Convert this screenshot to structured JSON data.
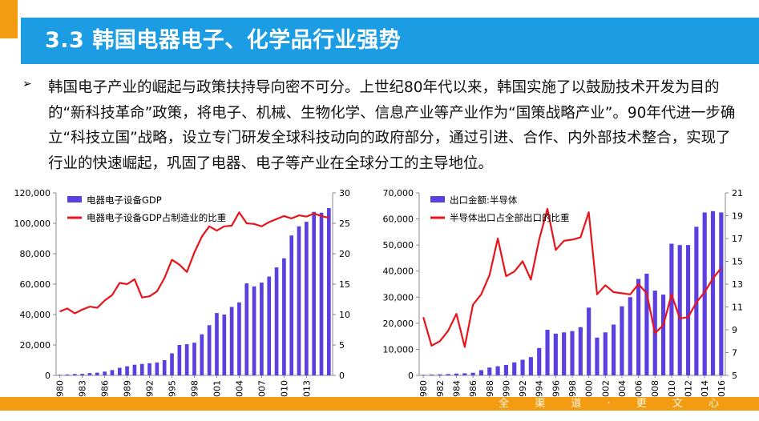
{
  "header": {
    "title": "3.3 韩国电器电子、化学品行业强势"
  },
  "body": {
    "bullet": "➢",
    "paragraph": "韩国电子产业的崛起与政策扶持导向密不可分。上世纪80年代以来，韩国实施了以鼓励技术开发为目的的“新科技革命”政策，将电子、机械、生物化学、信息产业等产业作为“国策战略产业”。90年代进一步确立“科技立国”战略，设立专门研发全球科技动向的政府部分，通过引进、合作、内外部技术整合，实现了行业的快速崛起，巩固了电器、电子等产业在全球分工的主导地位。"
  },
  "footer": {
    "text": "全 渠 道 · 更 文 心"
  },
  "colors": {
    "title_bar": "#1b9ce3",
    "accent_orange": "#f39c12",
    "bar": "#5b3fe0",
    "line": "#e8141b"
  },
  "chart_data": [
    {
      "type": "bar+line",
      "x": [
        1980,
        1981,
        1982,
        1983,
        1984,
        1985,
        1986,
        1987,
        1988,
        1989,
        1990,
        1991,
        1992,
        1993,
        1994,
        1995,
        1996,
        1997,
        1998,
        1999,
        2000,
        2001,
        2002,
        2003,
        2004,
        2005,
        2006,
        2007,
        2008,
        2009,
        2010,
        2011,
        2012,
        2013,
        2014,
        2015,
        2016
      ],
      "x_tick_labels": [
        "1980",
        "1983",
        "1986",
        "1989",
        "1992",
        "1995",
        "1998",
        "2001",
        "2004",
        "2007",
        "2010",
        "2013"
      ],
      "series": [
        {
          "name": "电器电子设备GDP",
          "type": "bar",
          "axis": "left",
          "values": [
            400,
            600,
            900,
            1000,
            1500,
            1800,
            2500,
            3500,
            5000,
            6000,
            7000,
            7500,
            8000,
            8500,
            10000,
            14500,
            20000,
            20500,
            21500,
            27000,
            33000,
            41000,
            40000,
            45000,
            48000,
            60500,
            58500,
            61000,
            65000,
            71000,
            77000,
            92000,
            98000,
            101000,
            107500,
            107000,
            110000
          ]
        },
        {
          "name": "电器电子设备GDP占制造业的比重",
          "type": "line",
          "axis": "right",
          "values": [
            10.5,
            11,
            10.2,
            10.8,
            11.3,
            11.1,
            12.3,
            13.2,
            15.2,
            15,
            15.8,
            12.8,
            13,
            13.8,
            16,
            19,
            18.2,
            17,
            20.2,
            22.8,
            24.5,
            23.8,
            24.5,
            24.6,
            26.8,
            25,
            24.9,
            24.5,
            25.2,
            25.7,
            26.2,
            25.8,
            26.3,
            26.1,
            26.6,
            26.2,
            25.9
          ]
        }
      ],
      "y_left": {
        "min": 0,
        "max": 120000,
        "ticks": [
          "0",
          "20,000",
          "40,000",
          "60,000",
          "80,000",
          "100,000",
          "120,000"
        ]
      },
      "y_right": {
        "min": 0,
        "max": 30,
        "ticks": [
          "0",
          "5",
          "10",
          "15",
          "20",
          "25",
          "30"
        ]
      },
      "legend": [
        "电器电子设备GDP",
        "电器电子设备GDP占制造业的比重"
      ],
      "legend_position": "top-left"
    },
    {
      "type": "bar+line",
      "x": [
        1980,
        1981,
        1982,
        1983,
        1984,
        1985,
        1986,
        1987,
        1988,
        1989,
        1990,
        1991,
        1992,
        1993,
        1994,
        1995,
        1996,
        1997,
        1998,
        1999,
        2000,
        2001,
        2002,
        2003,
        2004,
        2005,
        2006,
        2007,
        2008,
        2009,
        2010,
        2011,
        2012,
        2013,
        2014,
        2015,
        2016
      ],
      "x_tick_labels": [
        "1980",
        "1982",
        "1984",
        "1986",
        "1988",
        "1990",
        "1992",
        "1994",
        "1996",
        "1998",
        "2000",
        "2002",
        "2004",
        "2006",
        "2008",
        "2010",
        "2012",
        "2014",
        "2016"
      ],
      "series": [
        {
          "name": "出口金额:半导体",
          "type": "bar",
          "axis": "left",
          "values": [
            200,
            300,
            400,
            500,
            700,
            800,
            1000,
            2000,
            3000,
            3500,
            4000,
            5000,
            6000,
            7000,
            10500,
            17500,
            16000,
            16500,
            17000,
            18500,
            26000,
            14500,
            16500,
            19500,
            26500,
            30000,
            37000,
            39000,
            32500,
            31000,
            50500,
            50000,
            50000,
            57000,
            62500,
            63000,
            62500
          ]
        },
        {
          "name": "半导体出口占全部出口的比重",
          "type": "line",
          "axis": "right",
          "values": [
            10.1,
            7.6,
            8,
            8.9,
            10.4,
            7.5,
            11.2,
            12.1,
            13.8,
            17,
            13.7,
            14.1,
            15,
            13.4,
            16.9,
            19.6,
            16,
            16.8,
            16.9,
            17.1,
            19.3,
            12.1,
            12.9,
            12.3,
            12.2,
            12.1,
            13,
            12.2,
            8.7,
            9.4,
            12.1,
            10,
            10.1,
            11.4,
            12.3,
            13.5,
            14.4
          ]
        }
      ],
      "y_left": {
        "min": 0,
        "max": 70000,
        "ticks": [
          "0",
          "10,000",
          "20,000",
          "30,000",
          "40,000",
          "50,000",
          "60,000",
          "70,000"
        ]
      },
      "y_right": {
        "min": 5,
        "max": 21,
        "ticks": [
          "5",
          "7",
          "9",
          "11",
          "13",
          "15",
          "17",
          "19",
          "21"
        ]
      },
      "legend": [
        "出口金额:半导体",
        "半导体出口占全部出口的比重"
      ],
      "legend_position": "top-left"
    }
  ]
}
